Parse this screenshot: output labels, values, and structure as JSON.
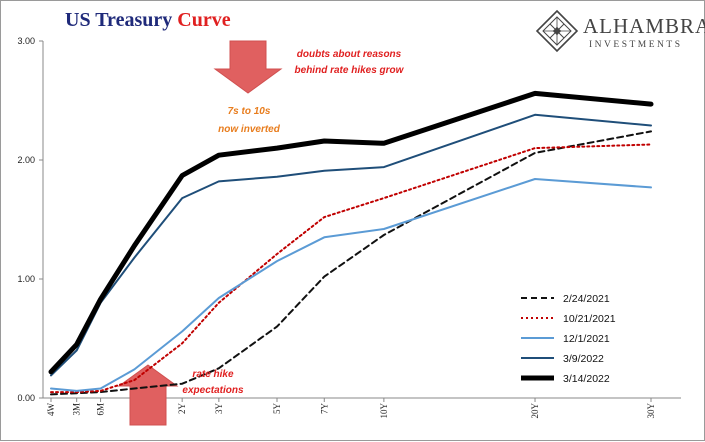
{
  "header": {
    "title_part1": "US Treasury ",
    "title_part2": "Curve",
    "title_color1": "#1f2a7a",
    "title_color2": "#e02020"
  },
  "logo": {
    "name": "ALHAMBRA",
    "sub": "INVESTMENTS",
    "icon": "diamond-lattice-icon"
  },
  "annotations": {
    "top_arrow_text_1": "doubts about reasons",
    "top_arrow_text_2": "behind rate hikes grow",
    "mid_text_1": "7s to 10s",
    "mid_text_2": "now inverted",
    "bottom_arrow_text_1": "rate hike",
    "bottom_arrow_text_2": "expectations",
    "annotation_color": "#e02020",
    "mid_color": "#e87d1e",
    "arrow_color": "#e06060"
  },
  "chart_data": {
    "type": "line",
    "title": "US Treasury Curve",
    "xlabel": "",
    "ylabel": "",
    "ylim": [
      0,
      3
    ],
    "y_ticks": [
      "0.00",
      "1.00",
      "2.00",
      "3.00"
    ],
    "grid": false,
    "legend_position": "bottom-right",
    "x_labels": [
      "4W",
      "3M",
      "6M",
      "1Y",
      "2Y",
      "3Y",
      "5Y",
      "7Y",
      "10Y",
      "20Y",
      "30Y"
    ],
    "x_years": [
      0.077,
      0.25,
      0.5,
      1,
      2,
      3,
      5,
      7,
      10,
      20,
      30
    ],
    "series": [
      {
        "name": "2/24/2021",
        "color": "#111111",
        "dash": "6,4",
        "width": 2,
        "values": [
          0.03,
          0.04,
          0.05,
          0.08,
          0.12,
          0.25,
          0.6,
          1.02,
          1.37,
          2.06,
          2.24
        ]
      },
      {
        "name": "10/21/2021",
        "color": "#c00000",
        "dash": "2,3",
        "width": 2,
        "values": [
          0.05,
          0.05,
          0.06,
          0.15,
          0.46,
          0.8,
          1.21,
          1.52,
          1.68,
          2.1,
          2.13
        ]
      },
      {
        "name": "12/1/2021",
        "color": "#5b9bd5",
        "dash": "",
        "width": 2,
        "values": [
          0.08,
          0.06,
          0.08,
          0.24,
          0.56,
          0.84,
          1.15,
          1.35,
          1.42,
          1.84,
          1.77
        ]
      },
      {
        "name": "3/9/2022",
        "color": "#1f4e79",
        "dash": "",
        "width": 2,
        "values": [
          0.19,
          0.4,
          0.8,
          1.18,
          1.68,
          1.82,
          1.86,
          1.91,
          1.94,
          2.38,
          2.29
        ]
      },
      {
        "name": "3/14/2022",
        "color": "#000000",
        "dash": "",
        "width": 5,
        "values": [
          0.22,
          0.45,
          0.83,
          1.28,
          1.87,
          2.04,
          2.1,
          2.16,
          2.14,
          2.56,
          2.47
        ]
      }
    ]
  }
}
